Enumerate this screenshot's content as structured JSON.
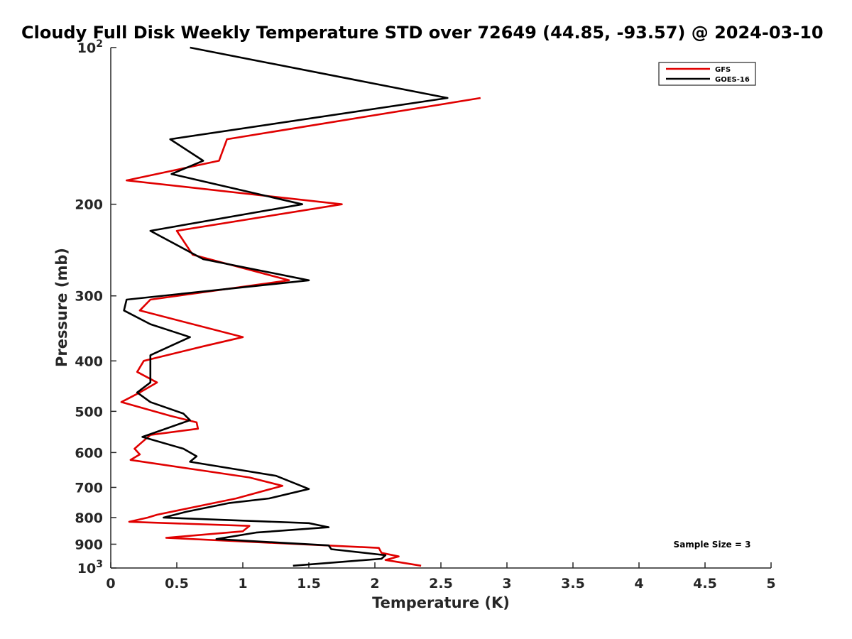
{
  "chart_data": {
    "type": "line",
    "title": "Cloudy Full Disk Weekly Temperature STD over 72649 (44.85, -93.57) @ 2024-03-10",
    "xlabel": "Temperature (K)",
    "ylabel": "Pressure (mb)",
    "xlim": [
      0,
      5
    ],
    "ylim": [
      100,
      1000
    ],
    "y_scale": "log",
    "y_reversed": true,
    "grid": false,
    "legend_position": "top-right",
    "x_ticks": [
      0,
      0.5,
      1,
      1.5,
      2,
      2.5,
      3,
      3.5,
      4,
      4.5,
      5
    ],
    "x_tick_labels": [
      "0",
      "0.5",
      "1",
      "1.5",
      "2",
      "2.5",
      "3",
      "3.5",
      "4",
      "4.5",
      "5"
    ],
    "y_ticks": [
      100,
      200,
      300,
      400,
      500,
      600,
      700,
      800,
      900,
      1000
    ],
    "y_tick_labels": [
      {
        "base": "10",
        "exp": "2"
      },
      {
        "base": "200",
        "exp": ""
      },
      {
        "base": "300",
        "exp": ""
      },
      {
        "base": "400",
        "exp": ""
      },
      {
        "base": "500",
        "exp": ""
      },
      {
        "base": "600",
        "exp": ""
      },
      {
        "base": "700",
        "exp": ""
      },
      {
        "base": "800",
        "exp": ""
      },
      {
        "base": "900",
        "exp": ""
      },
      {
        "base": "10",
        "exp": "3"
      }
    ],
    "annotation": "Sample Size = 3",
    "series": [
      {
        "name": "GFS",
        "color": "#e00000",
        "points": [
          [
            2.8,
            125
          ],
          [
            0.88,
            150
          ],
          [
            0.82,
            165
          ],
          [
            0.12,
            180
          ],
          [
            1.75,
            200
          ],
          [
            0.5,
            225
          ],
          [
            0.62,
            250
          ],
          [
            1.35,
            280
          ],
          [
            0.3,
            305
          ],
          [
            0.22,
            320
          ],
          [
            1.0,
            360
          ],
          [
            0.7,
            375
          ],
          [
            0.25,
            400
          ],
          [
            0.2,
            420
          ],
          [
            0.35,
            440
          ],
          [
            0.22,
            460
          ],
          [
            0.08,
            480
          ],
          [
            0.45,
            510
          ],
          [
            0.65,
            525
          ],
          [
            0.66,
            540
          ],
          [
            0.3,
            555
          ],
          [
            0.23,
            575
          ],
          [
            0.18,
            590
          ],
          [
            0.22,
            605
          ],
          [
            0.15,
            620
          ],
          [
            0.7,
            650
          ],
          [
            1.05,
            670
          ],
          [
            1.3,
            695
          ],
          [
            0.95,
            735
          ],
          [
            0.35,
            790
          ],
          [
            0.28,
            800
          ],
          [
            0.14,
            815
          ],
          [
            1.05,
            830
          ],
          [
            1.0,
            850
          ],
          [
            0.42,
            875
          ],
          [
            2.03,
            915
          ],
          [
            2.05,
            935
          ],
          [
            2.18,
            950
          ],
          [
            2.08,
            965
          ],
          [
            2.35,
            990
          ]
        ]
      },
      {
        "name": "GOES-16",
        "color": "#000000",
        "points": [
          [
            0.6,
            100
          ],
          [
            2.55,
            125
          ],
          [
            0.45,
            150
          ],
          [
            0.7,
            165
          ],
          [
            0.46,
            175
          ],
          [
            1.45,
            200
          ],
          [
            0.3,
            225
          ],
          [
            0.7,
            255
          ],
          [
            1.5,
            280
          ],
          [
            0.12,
            305
          ],
          [
            0.1,
            320
          ],
          [
            0.3,
            340
          ],
          [
            0.6,
            360
          ],
          [
            0.3,
            390
          ],
          [
            0.3,
            420
          ],
          [
            0.3,
            440
          ],
          [
            0.2,
            460
          ],
          [
            0.3,
            480
          ],
          [
            0.55,
            505
          ],
          [
            0.6,
            520
          ],
          [
            0.24,
            560
          ],
          [
            0.55,
            590
          ],
          [
            0.65,
            610
          ],
          [
            0.6,
            625
          ],
          [
            1.25,
            665
          ],
          [
            1.5,
            705
          ],
          [
            1.2,
            735
          ],
          [
            0.9,
            750
          ],
          [
            0.57,
            780
          ],
          [
            0.4,
            800
          ],
          [
            1.5,
            820
          ],
          [
            1.65,
            835
          ],
          [
            1.1,
            855
          ],
          [
            0.8,
            880
          ],
          [
            1.65,
            905
          ],
          [
            1.67,
            920
          ],
          [
            2.08,
            945
          ],
          [
            2.05,
            960
          ],
          [
            1.38,
            990
          ]
        ]
      }
    ]
  }
}
